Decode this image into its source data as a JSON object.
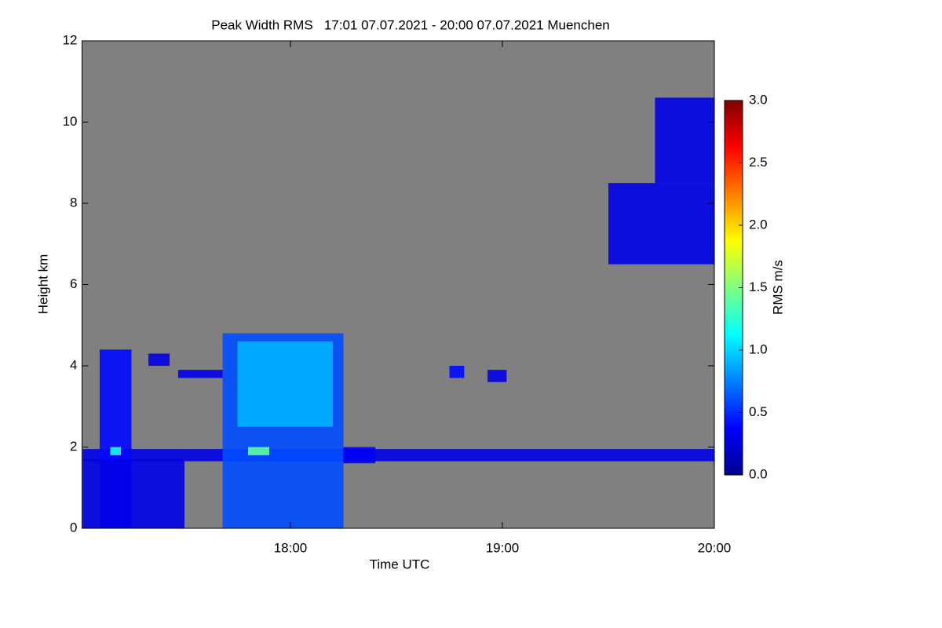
{
  "chart_data": {
    "type": "heatmap",
    "title": "Peak Width RMS   17:01 07.07.2021 - 20:00 07.07.2021 Muenchen",
    "x_label": "Time UTC",
    "y_label": "Height km",
    "colorbar_label": "RMS m/s",
    "background": "#808080",
    "xlim": [
      17.0167,
      20.0
    ],
    "xticks": [
      {
        "value": 18,
        "label": "18:00"
      },
      {
        "value": 19,
        "label": "19:00"
      },
      {
        "value": 20,
        "label": "20:00"
      }
    ],
    "ylim": [
      0,
      12
    ],
    "yticks": [
      0,
      2,
      4,
      6,
      8,
      10,
      12
    ],
    "zlim": [
      0,
      3
    ],
    "zticks": [
      {
        "value": 0,
        "label": "0.0"
      },
      {
        "value": 0.5,
        "label": "0.5"
      },
      {
        "value": 1,
        "label": "1.0"
      },
      {
        "value": 1.5,
        "label": "1.5"
      },
      {
        "value": 2,
        "label": "2.0"
      },
      {
        "value": 2.5,
        "label": "2.5"
      },
      {
        "value": 3,
        "label": "3.0"
      }
    ],
    "x0": [
      17.02,
      17.1,
      17.02,
      17.68,
      17.47,
      19.5,
      19.72,
      18.75,
      18.93,
      17.33,
      18.25,
      17.8,
      17.15,
      17.75
    ],
    "x1": [
      20.0,
      17.25,
      17.5,
      18.25,
      17.68,
      20.0,
      20.0,
      18.82,
      19.02,
      17.43,
      18.4,
      17.9,
      17.2,
      18.2
    ],
    "y0": [
      1.65,
      0,
      0,
      0,
      3.7,
      6.5,
      8.5,
      3.7,
      3.6,
      4.0,
      1.6,
      1.8,
      1.8,
      2.5
    ],
    "y1": [
      1.95,
      4.4,
      1.7,
      4.8,
      3.9,
      8.5,
      10.6,
      4.0,
      3.9,
      4.3,
      2.0,
      2.0,
      2.0,
      4.6
    ],
    "values": [
      0.3,
      0.4,
      0.3,
      0.6,
      0.3,
      0.3,
      0.3,
      0.4,
      0.3,
      0.3,
      0.35,
      1.4,
      1.2,
      0.9
    ]
  }
}
